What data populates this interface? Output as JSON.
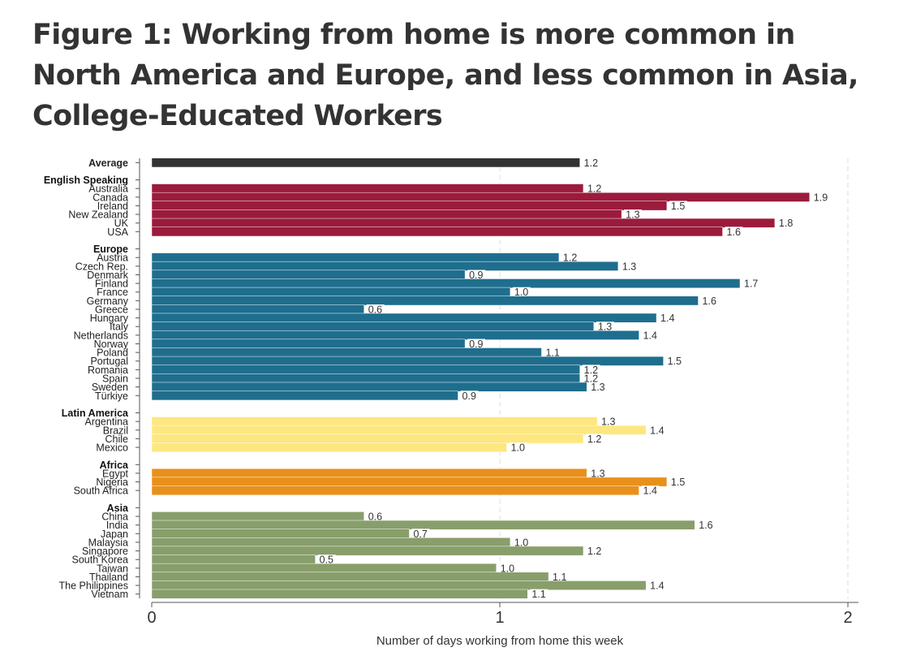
{
  "page": {
    "title": "Figure 1: Working from home is more common in North America and Europe, and less common in Asia, College-Educated Workers"
  },
  "colors": {
    "Average": "#333333",
    "English Speaking": "#9b1b3c",
    "Europe": "#1f6e8e",
    "Latin America": "#fde780",
    "Africa": "#e8901c",
    "Asia": "#889e6b"
  },
  "chart_data": {
    "type": "bar",
    "orientation": "horizontal",
    "title": "",
    "xlabel": "Number of days working from home this week",
    "ylabel": "",
    "xlim": [
      0,
      2
    ],
    "xticks": [
      0,
      1,
      2
    ],
    "grid": "vertical dashed at x ticks",
    "groups": [
      {
        "name": "Average",
        "header": false,
        "items": [
          {
            "label": "Average",
            "value": 1.23,
            "text": "1.2"
          }
        ]
      },
      {
        "name": "English Speaking",
        "header": true,
        "items": [
          {
            "label": "Australia",
            "value": 1.24,
            "text": "1.2"
          },
          {
            "label": "Canada",
            "value": 1.89,
            "text": "1.9"
          },
          {
            "label": "Ireland",
            "value": 1.48,
            "text": "1.5"
          },
          {
            "label": "New Zealand",
            "value": 1.35,
            "text": "1.3"
          },
          {
            "label": "UK",
            "value": 1.79,
            "text": "1.8"
          },
          {
            "label": "USA",
            "value": 1.64,
            "text": "1.6"
          }
        ]
      },
      {
        "name": "Europe",
        "header": true,
        "items": [
          {
            "label": "Austria",
            "value": 1.17,
            "text": "1.2"
          },
          {
            "label": "Czech Rep.",
            "value": 1.34,
            "text": "1.3"
          },
          {
            "label": "Denmark",
            "value": 0.9,
            "text": "0.9"
          },
          {
            "label": "Finland",
            "value": 1.69,
            "text": "1.7"
          },
          {
            "label": "France",
            "value": 1.03,
            "text": "1.0"
          },
          {
            "label": "Germany",
            "value": 1.57,
            "text": "1.6"
          },
          {
            "label": "Greece",
            "value": 0.61,
            "text": "0.6"
          },
          {
            "label": "Hungary",
            "value": 1.45,
            "text": "1.4"
          },
          {
            "label": "Italy",
            "value": 1.27,
            "text": "1.3"
          },
          {
            "label": "Netherlands",
            "value": 1.4,
            "text": "1.4"
          },
          {
            "label": "Norway",
            "value": 0.9,
            "text": "0.9"
          },
          {
            "label": "Poland",
            "value": 1.12,
            "text": "1.1"
          },
          {
            "label": "Portugal",
            "value": 1.47,
            "text": "1.5"
          },
          {
            "label": "Romania",
            "value": 1.23,
            "text": "1.2"
          },
          {
            "label": "Spain",
            "value": 1.23,
            "text": "1.2"
          },
          {
            "label": "Sweden",
            "value": 1.25,
            "text": "1.3"
          },
          {
            "label": "Türkiye",
            "value": 0.88,
            "text": "0.9"
          }
        ]
      },
      {
        "name": "Latin America",
        "header": true,
        "items": [
          {
            "label": "Argentina",
            "value": 1.28,
            "text": "1.3"
          },
          {
            "label": "Brazil",
            "value": 1.42,
            "text": "1.4"
          },
          {
            "label": "Chile",
            "value": 1.24,
            "text": "1.2"
          },
          {
            "label": "Mexico",
            "value": 1.02,
            "text": "1.0"
          }
        ]
      },
      {
        "name": "Africa",
        "header": true,
        "items": [
          {
            "label": "Egypt",
            "value": 1.25,
            "text": "1.3"
          },
          {
            "label": "Nigeria",
            "value": 1.48,
            "text": "1.5"
          },
          {
            "label": "South Africa",
            "value": 1.4,
            "text": "1.4"
          }
        ]
      },
      {
        "name": "Asia",
        "header": true,
        "items": [
          {
            "label": "China",
            "value": 0.61,
            "text": "0.6"
          },
          {
            "label": "India",
            "value": 1.56,
            "text": "1.6"
          },
          {
            "label": "Japan",
            "value": 0.74,
            "text": "0.7"
          },
          {
            "label": "Malaysia",
            "value": 1.03,
            "text": "1.0"
          },
          {
            "label": "Singapore",
            "value": 1.24,
            "text": "1.2"
          },
          {
            "label": "South Korea",
            "value": 0.47,
            "text": "0.5"
          },
          {
            "label": "Taiwan",
            "value": 0.99,
            "text": "1.0"
          },
          {
            "label": "Thailand",
            "value": 1.14,
            "text": "1.1"
          },
          {
            "label": "The Philippines",
            "value": 1.42,
            "text": "1.4"
          },
          {
            "label": "Vietnam",
            "value": 1.08,
            "text": "1.1"
          }
        ]
      }
    ]
  }
}
